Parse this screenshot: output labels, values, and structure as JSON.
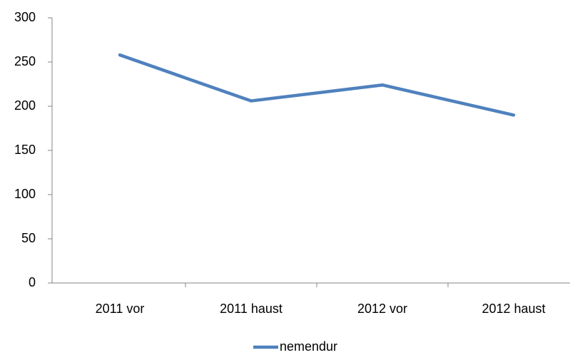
{
  "chart_data": {
    "type": "line",
    "categories": [
      "2011 vor",
      "2011 haust",
      "2012 vor",
      "2012 haust"
    ],
    "series": [
      {
        "name": "nemendur",
        "color": "#4f81bd",
        "values": [
          258,
          206,
          224,
          190
        ]
      }
    ],
    "ylim": [
      0,
      300
    ],
    "yticks": [
      0,
      50,
      100,
      150,
      200,
      250,
      300
    ],
    "grid": false,
    "legend": "bottom"
  }
}
